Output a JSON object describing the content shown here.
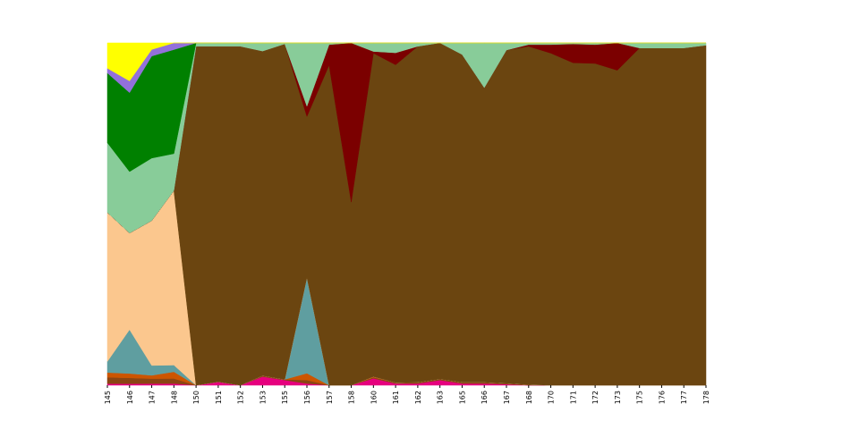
{
  "chart_data": {
    "type": "area",
    "stacked": true,
    "normalized": true,
    "ylim": [
      0,
      1
    ],
    "grid": false,
    "legend": "none",
    "x": [
      "145",
      "146",
      "147",
      "148",
      "150",
      "151",
      "152",
      "153",
      "155",
      "156",
      "157",
      "158",
      "160",
      "161",
      "162",
      "163",
      "165",
      "166",
      "167",
      "168",
      "170",
      "171",
      "172",
      "173",
      "175",
      "176",
      "177",
      "178"
    ],
    "series": [
      {
        "color": "#e6007e",
        "values": [
          0.005,
          0.005,
          0.005,
          0.005,
          0,
          0.01,
          0,
          0.025,
          0.015,
          0.005,
          0,
          0,
          0.02,
          0.005,
          0.005,
          0.015,
          0.005,
          0.005,
          0.003,
          0,
          0,
          0,
          0,
          0,
          0,
          0,
          0,
          0
        ]
      },
      {
        "color": "#8b4513",
        "values": [
          0.02,
          0.02,
          0.015,
          0.015,
          0,
          0,
          0,
          0.003,
          0.002,
          0.01,
          0,
          0,
          0.003,
          0.003,
          0.004,
          0.003,
          0.004,
          0.004,
          0.003,
          0.002,
          0,
          0,
          0,
          0,
          0,
          0,
          0,
          0
        ]
      },
      {
        "color": "#cc5500",
        "values": [
          0.015,
          0.015,
          0.01,
          0.02,
          0,
          0,
          0,
          0,
          0,
          0.02,
          0,
          0,
          0.002,
          0,
          0,
          0,
          0,
          0,
          0,
          0,
          0,
          0,
          0,
          0,
          0,
          0,
          0,
          0
        ]
      },
      {
        "color": "#5f9ea0",
        "values": [
          0.035,
          0.15,
          0.03,
          0.02,
          0,
          0,
          0,
          0,
          0,
          0.28,
          0,
          0,
          0,
          0,
          0,
          0,
          0,
          0,
          0,
          0,
          0,
          0,
          0,
          0,
          0,
          0,
          0,
          0
        ]
      },
      {
        "color": "#fbc78e",
        "values": [
          0.47,
          0.33,
          0.44,
          0.52,
          0,
          0,
          0,
          0,
          0,
          0,
          0,
          0,
          0,
          0,
          0,
          0,
          0,
          0,
          0,
          0,
          0,
          0,
          0,
          0,
          0,
          0,
          0,
          0
        ]
      },
      {
        "color": "#6b4510",
        "values": [
          0,
          0,
          0,
          0,
          0.99,
          0.98,
          0.99,
          0.948,
          0.98,
          0.47,
          0.935,
          0.535,
          0.945,
          0.928,
          0.981,
          0.982,
          0.957,
          0.86,
          0.976,
          0.988,
          0.97,
          0.942,
          0.94,
          0.92,
          0.985,
          0.985,
          0.985,
          0.993
        ]
      },
      {
        "color": "#7b0000",
        "values": [
          0,
          0,
          0,
          0,
          0,
          0,
          0,
          0,
          0,
          0.03,
          0.06,
          0.465,
          0.005,
          0.035,
          0,
          0,
          0,
          0,
          0,
          0.005,
          0.025,
          0.055,
          0.055,
          0.08,
          0,
          0,
          0,
          0
        ]
      },
      {
        "color": "#88cc99",
        "values": [
          0.22,
          0.21,
          0.19,
          0.11,
          0.01,
          0.01,
          0.01,
          0.024,
          0.003,
          0.185,
          0.005,
          0,
          0.025,
          0.029,
          0.01,
          0,
          0.034,
          0.131,
          0.021,
          0.005,
          0.005,
          0.003,
          0.005,
          0,
          0.015,
          0.015,
          0.015,
          0.007
        ]
      },
      {
        "color": "#008000",
        "values": [
          0.22,
          0.27,
          0.31,
          0.31,
          0,
          0,
          0,
          0,
          0,
          0,
          0,
          0,
          0,
          0,
          0,
          0,
          0,
          0,
          0,
          0,
          0,
          0,
          0,
          0,
          0,
          0,
          0,
          0
        ]
      },
      {
        "color": "#9370db",
        "values": [
          0.015,
          0.04,
          0.02,
          0.02,
          0,
          0,
          0,
          0,
          0,
          0,
          0,
          0,
          0,
          0,
          0,
          0,
          0,
          0,
          0,
          0,
          0,
          0,
          0,
          0,
          0,
          0,
          0,
          0
        ]
      },
      {
        "color": "#ffff00",
        "values": [
          0.08,
          0.13,
          0.02,
          0.0,
          0,
          0,
          0,
          0,
          0,
          0,
          0,
          0,
          0,
          0,
          0,
          0,
          0,
          0,
          0,
          0,
          0,
          0,
          0,
          0,
          0,
          0,
          0,
          0
        ]
      }
    ]
  }
}
